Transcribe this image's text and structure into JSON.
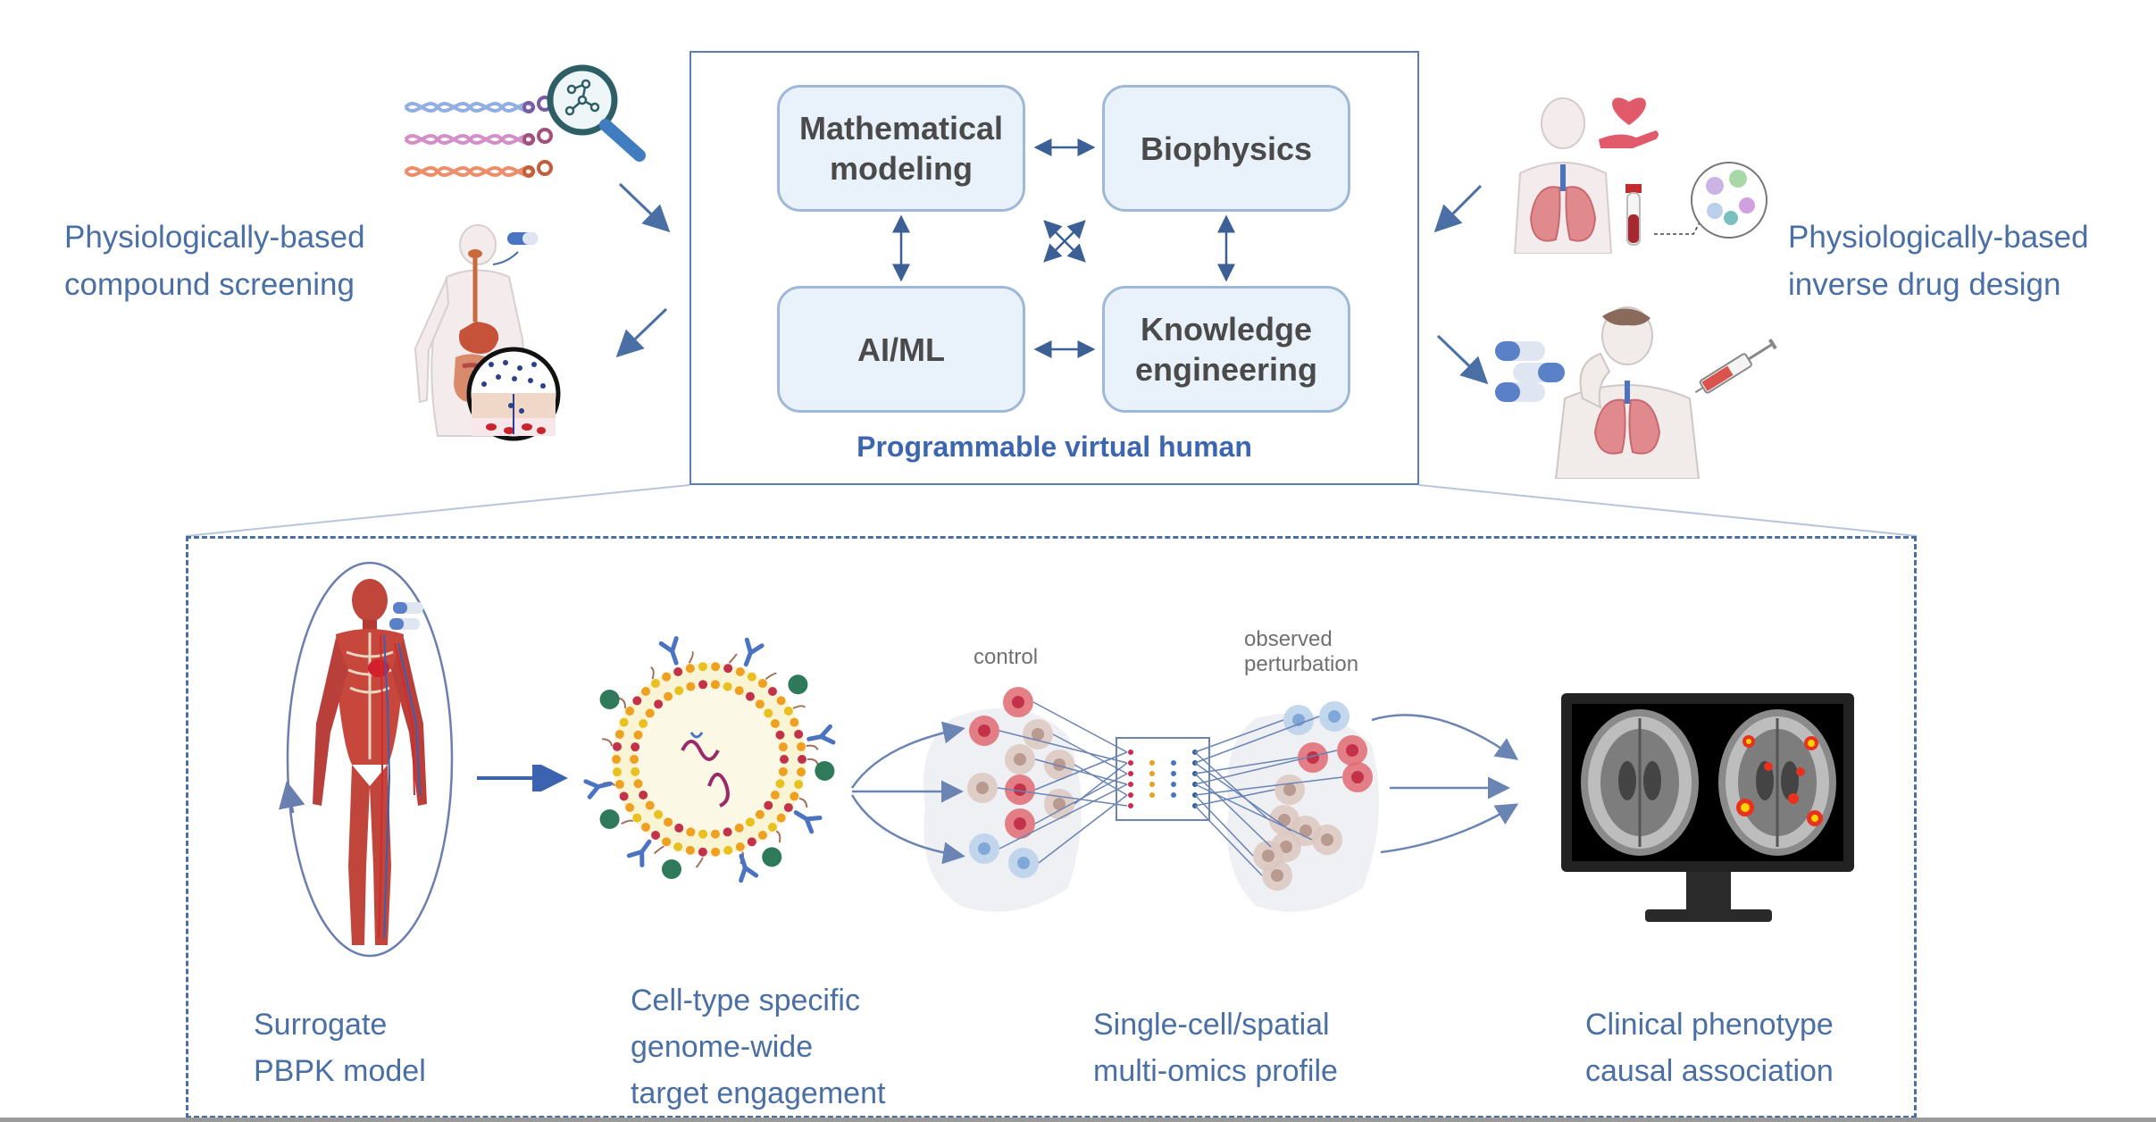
{
  "left_label": {
    "line1": "Physiologically-based",
    "line2": "compound screening"
  },
  "right_label": {
    "line1": "Physiologically-based",
    "line2": "inverse drug design"
  },
  "core": {
    "boxes": [
      "Mathematical\nmodeling",
      "Biophysics",
      "AI/ML",
      "Knowledge\nengineering"
    ],
    "title": "Programmable virtual human"
  },
  "pipeline": {
    "control_label": "control",
    "perturb_label_1": "observed",
    "perturb_label_2": "perturbation",
    "stages": [
      {
        "line1": "Surrogate",
        "line2": "PBPK model",
        "line3": ""
      },
      {
        "line1": "Cell-type specific",
        "line2": "genome-wide",
        "line3": "target engagement"
      },
      {
        "line1": "Single-cell/spatial",
        "line2": "multi-omics profile",
        "line3": ""
      },
      {
        "line1": "Clinical phenotype",
        "line2": "causal association",
        "line3": ""
      }
    ]
  },
  "colors": {
    "accent_blue": "#4a6fa5",
    "box_fill": "#e9f2fa",
    "box_border": "#9eb8d8",
    "title_blue": "#3c66b0",
    "cell_red": "#d9535f",
    "cell_beige": "#d7c2b8",
    "cell_blue": "#a9c6e6"
  },
  "icons": [
    "dna-strands-icon",
    "magnifier-molecule-icon",
    "human-digestive-icon",
    "heart-in-hand-icon",
    "lungs-body-icon",
    "blood-tube-icon",
    "cells-zoom-icon",
    "pills-icon",
    "coughing-person-icon",
    "syringe-icon",
    "human-anatomy-icon",
    "nanoparticle-icon",
    "cell-map-icon",
    "monitor-brain-icon"
  ]
}
